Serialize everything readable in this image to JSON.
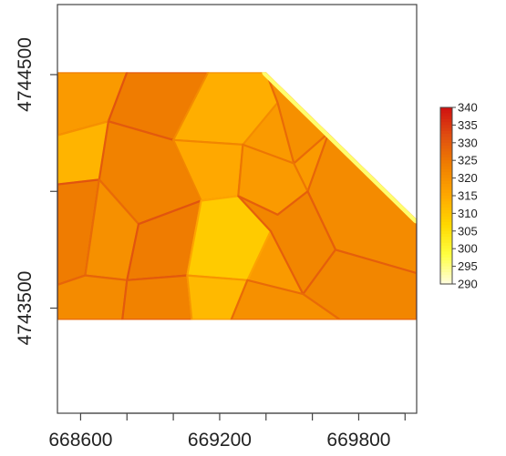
{
  "chart_data": {
    "type": "heatmap",
    "title": "",
    "xlabel": "",
    "ylabel": "",
    "xlim": [
      668500,
      670050
    ],
    "ylim": [
      4743050,
      4744800
    ],
    "x_ticks": [
      668600,
      668800,
      669000,
      669200,
      669400,
      669600,
      669800,
      670000
    ],
    "x_tick_labels": [
      {
        "value": 668600,
        "label": "668600"
      },
      {
        "value": 669200,
        "label": "669200"
      },
      {
        "value": 669800,
        "label": "669800"
      }
    ],
    "y_ticks": [
      4743500,
      4744000,
      4744500
    ],
    "y_tick_labels": [
      {
        "value": 4743500,
        "label": "4743500"
      },
      {
        "value": 4744500,
        "label": "4744500"
      }
    ],
    "raster_extent": {
      "x": [
        668500,
        670050
      ],
      "y": [
        4743450,
        4744510
      ]
    },
    "diagonal_edge": [
      {
        "x": 669400,
        "y": 4744510
      },
      {
        "x": 670050,
        "y": 4743880
      }
    ],
    "color_scale": {
      "min": 290,
      "max": 340,
      "ticks": [
        290,
        295,
        300,
        305,
        310,
        315,
        320,
        325,
        330,
        335,
        340
      ],
      "colors": [
        "#fffde0",
        "#ffff40",
        "#ffd800",
        "#ffa800",
        "#f08000",
        "#e05010",
        "#d01010"
      ]
    },
    "fields": [
      {
        "polygon": [
          [
            668500,
            4744510
          ],
          [
            668800,
            4744510
          ],
          [
            668720,
            4744300
          ],
          [
            668500,
            4744240
          ]
        ],
        "value": 318
      },
      {
        "polygon": [
          [
            668800,
            4744510
          ],
          [
            669150,
            4744510
          ],
          [
            669000,
            4744220
          ],
          [
            668720,
            4744300
          ]
        ],
        "value": 324
      },
      {
        "polygon": [
          [
            669150,
            4744510
          ],
          [
            669400,
            4744510
          ],
          [
            669450,
            4744380
          ],
          [
            669300,
            4744200
          ],
          [
            669000,
            4744220
          ]
        ],
        "value": 314
      },
      {
        "polygon": [
          [
            669400,
            4744510
          ],
          [
            669670,
            4744250
          ],
          [
            669520,
            4744120
          ],
          [
            669450,
            4744380
          ]
        ],
        "value": 320
      },
      {
        "polygon": [
          [
            669670,
            4744250
          ],
          [
            670050,
            4743880
          ],
          [
            670050,
            4743650
          ],
          [
            669700,
            4743750
          ],
          [
            669580,
            4744000
          ]
        ],
        "value": 321
      },
      {
        "polygon": [
          [
            668500,
            4744240
          ],
          [
            668720,
            4744300
          ],
          [
            668680,
            4744050
          ],
          [
            668500,
            4744030
          ]
        ],
        "value": 313
      },
      {
        "polygon": [
          [
            668720,
            4744300
          ],
          [
            669000,
            4744220
          ],
          [
            669120,
            4743960
          ],
          [
            668850,
            4743860
          ],
          [
            668680,
            4744050
          ]
        ],
        "value": 323
      },
      {
        "polygon": [
          [
            669000,
            4744220
          ],
          [
            669300,
            4744200
          ],
          [
            669280,
            4743980
          ],
          [
            669120,
            4743960
          ]
        ],
        "value": 315
      },
      {
        "polygon": [
          [
            669300,
            4744200
          ],
          [
            669520,
            4744120
          ],
          [
            669580,
            4744000
          ],
          [
            669450,
            4743900
          ],
          [
            669280,
            4743980
          ]
        ],
        "value": 318
      },
      {
        "polygon": [
          [
            668500,
            4744030
          ],
          [
            668680,
            4744050
          ],
          [
            668620,
            4743640
          ],
          [
            668500,
            4743600
          ]
        ],
        "value": 324
      },
      {
        "polygon": [
          [
            668680,
            4744050
          ],
          [
            668850,
            4743860
          ],
          [
            668800,
            4743620
          ],
          [
            668620,
            4743640
          ]
        ],
        "value": 320
      },
      {
        "polygon": [
          [
            668850,
            4743860
          ],
          [
            669120,
            4743960
          ],
          [
            669060,
            4743640
          ],
          [
            668800,
            4743620
          ]
        ],
        "value": 324
      },
      {
        "polygon": [
          [
            669120,
            4743960
          ],
          [
            669280,
            4743980
          ],
          [
            669420,
            4743830
          ],
          [
            669320,
            4743620
          ],
          [
            669060,
            4743640
          ]
        ],
        "value": 309
      },
      {
        "polygon": [
          [
            669280,
            4743980
          ],
          [
            669450,
            4743900
          ],
          [
            669580,
            4744000
          ],
          [
            669700,
            4743750
          ],
          [
            669560,
            4743560
          ],
          [
            669420,
            4743830
          ]
        ],
        "value": 322
      },
      {
        "polygon": [
          [
            669700,
            4743750
          ],
          [
            670050,
            4743650
          ],
          [
            670050,
            4743450
          ],
          [
            669720,
            4743450
          ],
          [
            669560,
            4743560
          ]
        ],
        "value": 322
      },
      {
        "polygon": [
          [
            668500,
            4743600
          ],
          [
            668620,
            4743640
          ],
          [
            668800,
            4743620
          ],
          [
            668780,
            4743450
          ],
          [
            668500,
            4743450
          ]
        ],
        "value": 321
      },
      {
        "polygon": [
          [
            668800,
            4743620
          ],
          [
            669060,
            4743640
          ],
          [
            669080,
            4743450
          ],
          [
            668780,
            4743450
          ]
        ],
        "value": 323
      },
      {
        "polygon": [
          [
            669060,
            4743640
          ],
          [
            669320,
            4743620
          ],
          [
            669250,
            4743450
          ],
          [
            669080,
            4743450
          ]
        ],
        "value": 312
      },
      {
        "polygon": [
          [
            669320,
            4743620
          ],
          [
            669560,
            4743560
          ],
          [
            669720,
            4743450
          ],
          [
            669250,
            4743450
          ]
        ],
        "value": 320
      }
    ],
    "grid": false,
    "legend": "right"
  }
}
